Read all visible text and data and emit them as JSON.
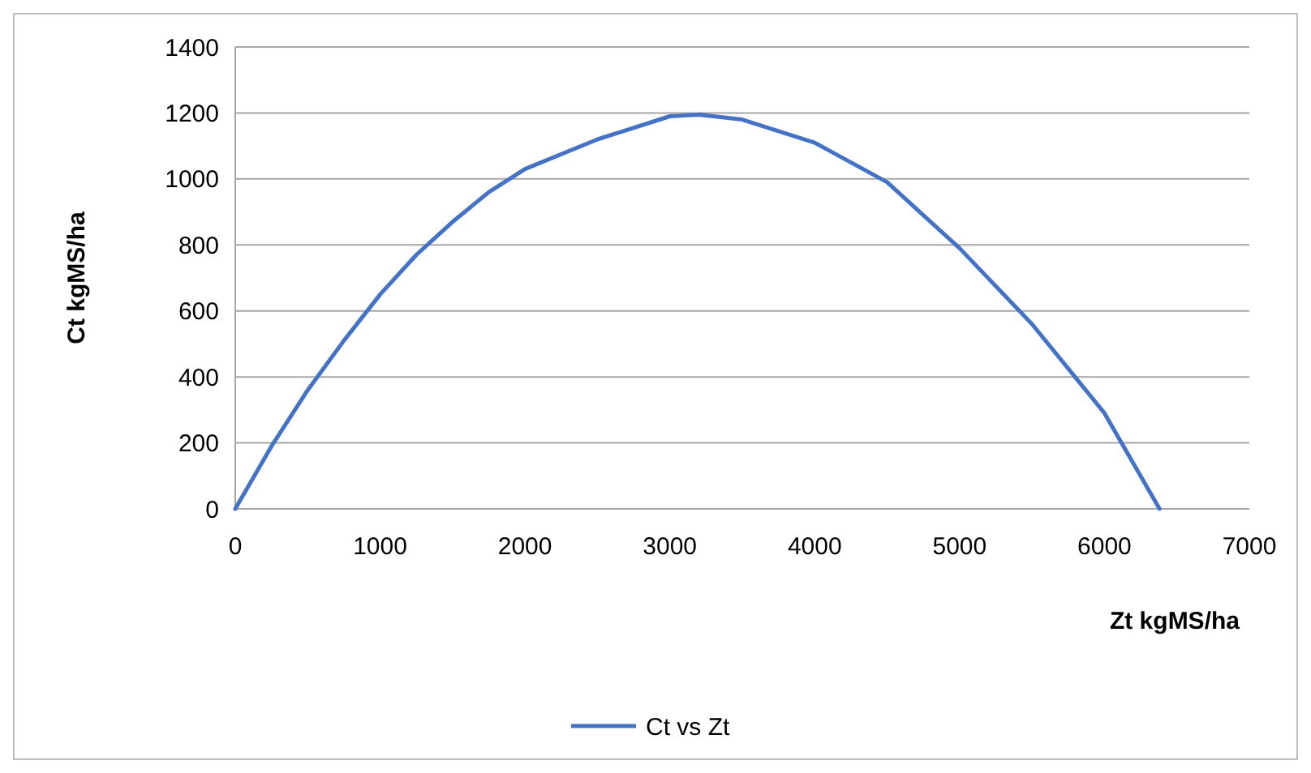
{
  "chart_data": {
    "type": "line",
    "xlabel": "Zt kgMS/ha",
    "ylabel": "Ct kgMS/ha",
    "x": [
      0,
      250,
      500,
      750,
      1000,
      1250,
      1500,
      1750,
      2000,
      2500,
      3000,
      3200,
      3500,
      4000,
      4500,
      5000,
      5500,
      6000,
      6380
    ],
    "series": [
      {
        "name": "Ct vs Zt",
        "color": "#4472c4",
        "values": [
          0,
          190,
          360,
          510,
          650,
          770,
          870,
          960,
          1030,
          1120,
          1190,
          1195,
          1180,
          1110,
          990,
          790,
          560,
          290,
          0
        ]
      }
    ],
    "xlim": [
      0,
      7000
    ],
    "xticks": [
      0,
      1000,
      2000,
      3000,
      4000,
      5000,
      6000,
      7000
    ],
    "ylim": [
      0,
      1400
    ],
    "yticks": [
      0,
      200,
      400,
      600,
      800,
      1000,
      1200,
      1400
    ],
    "grid": "y",
    "legend": "bottom",
    "marker": "none",
    "line_style": "solid"
  }
}
